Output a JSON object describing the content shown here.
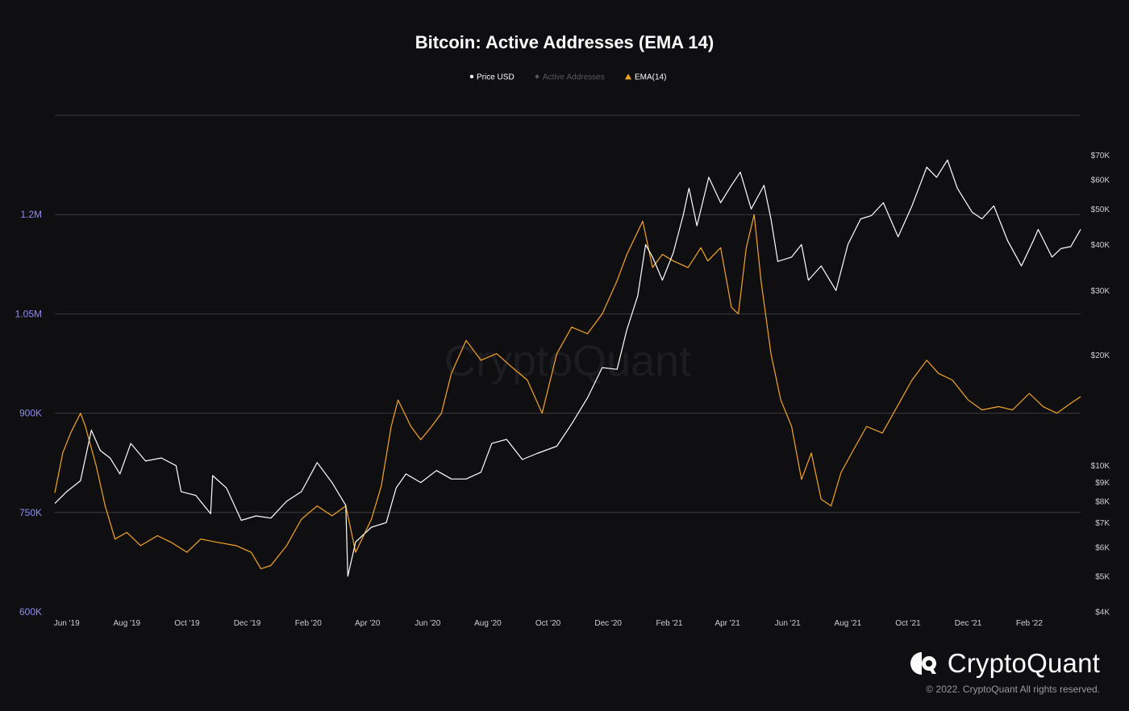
{
  "chart_data": {
    "type": "line",
    "title": "Bitcoin: Active Addresses (EMA 14)",
    "watermark": "CryptoQuant",
    "legend": [
      {
        "name": "Price USD",
        "marker": "circle",
        "color": "#ffffff",
        "active": true
      },
      {
        "name": "Active Addresses",
        "marker": "diamond",
        "color": "#5a5a5e",
        "active": false
      },
      {
        "name": "EMA(14)",
        "marker": "triangle",
        "color": "#f5a623",
        "active": true
      }
    ],
    "legend_placement": "top-center",
    "x_range": [
      "2019-05-20",
      "2022-03-25"
    ],
    "x_ticks": [
      "Jun '19",
      "Aug '19",
      "Oct '19",
      "Dec '19",
      "Feb '20",
      "Apr '20",
      "Jun '20",
      "Aug '20",
      "Oct '20",
      "Dec '20",
      "Feb '21",
      "Apr '21",
      "Jun '21",
      "Aug '21",
      "Oct '21",
      "Dec '21",
      "Feb '22"
    ],
    "y_left": {
      "ylim": [
        600000,
        1350000
      ],
      "ticks": [
        {
          "v": 600000,
          "label": "600K"
        },
        {
          "v": 750000,
          "label": "750K"
        },
        {
          "v": 900000,
          "label": "900K"
        },
        {
          "v": 1050000,
          "label": "1.05M"
        },
        {
          "v": 1200000,
          "label": "1.2M"
        }
      ],
      "color": "#8f8cf0",
      "grid": true
    },
    "y_right": {
      "scale": "log",
      "ylim": [
        4000,
        90000
      ],
      "ticks": [
        {
          "v": 4000,
          "label": "$4K"
        },
        {
          "v": 5000,
          "label": "$5K"
        },
        {
          "v": 6000,
          "label": "$6K"
        },
        {
          "v": 7000,
          "label": "$7K"
        },
        {
          "v": 8000,
          "label": "$8K"
        },
        {
          "v": 9000,
          "label": "$9K"
        },
        {
          "v": 10000,
          "label": "$10K"
        },
        {
          "v": 20000,
          "label": "$20K"
        },
        {
          "v": 30000,
          "label": "$30K"
        },
        {
          "v": 40000,
          "label": "$40K"
        },
        {
          "v": 50000,
          "label": "$50K"
        },
        {
          "v": 60000,
          "label": "$60K"
        },
        {
          "v": 70000,
          "label": "$70K"
        }
      ]
    },
    "series": [
      {
        "name": "Price USD",
        "axis": "right",
        "color": "#ffffff",
        "points": [
          [
            "2019-05-20",
            7900
          ],
          [
            "2019-06-01",
            8500
          ],
          [
            "2019-06-15",
            9100
          ],
          [
            "2019-06-26",
            12500
          ],
          [
            "2019-07-05",
            11000
          ],
          [
            "2019-07-15",
            10500
          ],
          [
            "2019-07-25",
            9500
          ],
          [
            "2019-08-05",
            11500
          ],
          [
            "2019-08-20",
            10300
          ],
          [
            "2019-09-05",
            10500
          ],
          [
            "2019-09-20",
            10000
          ],
          [
            "2019-09-25",
            8500
          ],
          [
            "2019-10-10",
            8300
          ],
          [
            "2019-10-25",
            7400
          ],
          [
            "2019-10-27",
            9400
          ],
          [
            "2019-11-10",
            8700
          ],
          [
            "2019-11-25",
            7100
          ],
          [
            "2019-12-10",
            7300
          ],
          [
            "2019-12-25",
            7200
          ],
          [
            "2020-01-10",
            8000
          ],
          [
            "2020-01-25",
            8500
          ],
          [
            "2020-02-10",
            10200
          ],
          [
            "2020-02-25",
            9000
          ],
          [
            "2020-03-10",
            7800
          ],
          [
            "2020-03-12",
            5000
          ],
          [
            "2020-03-20",
            6200
          ],
          [
            "2020-04-05",
            6800
          ],
          [
            "2020-04-20",
            7000
          ],
          [
            "2020-04-30",
            8700
          ],
          [
            "2020-05-10",
            9500
          ],
          [
            "2020-05-25",
            9000
          ],
          [
            "2020-06-10",
            9700
          ],
          [
            "2020-06-25",
            9200
          ],
          [
            "2020-07-10",
            9200
          ],
          [
            "2020-07-25",
            9600
          ],
          [
            "2020-08-05",
            11500
          ],
          [
            "2020-08-20",
            11800
          ],
          [
            "2020-09-05",
            10400
          ],
          [
            "2020-09-20",
            10800
          ],
          [
            "2020-10-10",
            11300
          ],
          [
            "2020-10-25",
            13000
          ],
          [
            "2020-11-10",
            15300
          ],
          [
            "2020-11-25",
            18500
          ],
          [
            "2020-12-10",
            18300
          ],
          [
            "2020-12-20",
            23500
          ],
          [
            "2020-12-31",
            29000
          ],
          [
            "2021-01-08",
            40000
          ],
          [
            "2021-01-15",
            37000
          ],
          [
            "2021-01-25",
            32000
          ],
          [
            "2021-02-05",
            38000
          ],
          [
            "2021-02-15",
            48000
          ],
          [
            "2021-02-21",
            57000
          ],
          [
            "2021-03-01",
            45000
          ],
          [
            "2021-03-13",
            61000
          ],
          [
            "2021-03-25",
            52000
          ],
          [
            "2021-04-05",
            58000
          ],
          [
            "2021-04-14",
            63000
          ],
          [
            "2021-04-25",
            50000
          ],
          [
            "2021-05-08",
            58000
          ],
          [
            "2021-05-15",
            47000
          ],
          [
            "2021-05-22",
            36000
          ],
          [
            "2021-06-05",
            37000
          ],
          [
            "2021-06-15",
            40000
          ],
          [
            "2021-06-22",
            32000
          ],
          [
            "2021-07-05",
            35000
          ],
          [
            "2021-07-20",
            30000
          ],
          [
            "2021-08-01",
            40000
          ],
          [
            "2021-08-14",
            47000
          ],
          [
            "2021-08-25",
            48000
          ],
          [
            "2021-09-06",
            52000
          ],
          [
            "2021-09-21",
            42000
          ],
          [
            "2021-10-05",
            51000
          ],
          [
            "2021-10-20",
            65000
          ],
          [
            "2021-10-30",
            61000
          ],
          [
            "2021-11-10",
            68000
          ],
          [
            "2021-11-20",
            57000
          ],
          [
            "2021-12-05",
            49000
          ],
          [
            "2021-12-15",
            47000
          ],
          [
            "2021-12-27",
            51000
          ],
          [
            "2022-01-10",
            41000
          ],
          [
            "2022-01-24",
            35000
          ],
          [
            "2022-02-05",
            41000
          ],
          [
            "2022-02-10",
            44000
          ],
          [
            "2022-02-24",
            37000
          ],
          [
            "2022-03-05",
            39000
          ],
          [
            "2022-03-15",
            39500
          ],
          [
            "2022-03-25",
            44000
          ]
        ]
      },
      {
        "name": "EMA(14)",
        "axis": "left",
        "color": "#f5a623",
        "points": [
          [
            "2019-05-20",
            780000
          ],
          [
            "2019-05-28",
            840000
          ],
          [
            "2019-06-05",
            870000
          ],
          [
            "2019-06-15",
            900000
          ],
          [
            "2019-06-20",
            880000
          ],
          [
            "2019-07-01",
            820000
          ],
          [
            "2019-07-10",
            760000
          ],
          [
            "2019-07-20",
            710000
          ],
          [
            "2019-08-01",
            720000
          ],
          [
            "2019-08-15",
            700000
          ],
          [
            "2019-09-01",
            715000
          ],
          [
            "2019-09-15",
            705000
          ],
          [
            "2019-10-01",
            690000
          ],
          [
            "2019-10-15",
            710000
          ],
          [
            "2019-11-01",
            705000
          ],
          [
            "2019-11-20",
            700000
          ],
          [
            "2019-12-05",
            690000
          ],
          [
            "2019-12-15",
            665000
          ],
          [
            "2019-12-25",
            670000
          ],
          [
            "2020-01-10",
            700000
          ],
          [
            "2020-01-25",
            740000
          ],
          [
            "2020-02-10",
            760000
          ],
          [
            "2020-02-25",
            745000
          ],
          [
            "2020-03-10",
            760000
          ],
          [
            "2020-03-20",
            690000
          ],
          [
            "2020-04-05",
            740000
          ],
          [
            "2020-04-15",
            790000
          ],
          [
            "2020-04-25",
            880000
          ],
          [
            "2020-05-02",
            920000
          ],
          [
            "2020-05-15",
            880000
          ],
          [
            "2020-05-25",
            860000
          ],
          [
            "2020-06-05",
            880000
          ],
          [
            "2020-06-15",
            900000
          ],
          [
            "2020-06-25",
            960000
          ],
          [
            "2020-07-10",
            1010000
          ],
          [
            "2020-07-25",
            980000
          ],
          [
            "2020-08-10",
            990000
          ],
          [
            "2020-08-25",
            970000
          ],
          [
            "2020-09-10",
            950000
          ],
          [
            "2020-09-25",
            900000
          ],
          [
            "2020-10-10",
            990000
          ],
          [
            "2020-10-25",
            1030000
          ],
          [
            "2020-11-10",
            1020000
          ],
          [
            "2020-11-25",
            1050000
          ],
          [
            "2020-12-10",
            1100000
          ],
          [
            "2020-12-20",
            1140000
          ],
          [
            "2021-01-05",
            1190000
          ],
          [
            "2021-01-15",
            1120000
          ],
          [
            "2021-01-25",
            1140000
          ],
          [
            "2021-02-05",
            1130000
          ],
          [
            "2021-02-20",
            1120000
          ],
          [
            "2021-03-05",
            1150000
          ],
          [
            "2021-03-12",
            1130000
          ],
          [
            "2021-03-25",
            1150000
          ],
          [
            "2021-04-05",
            1060000
          ],
          [
            "2021-04-12",
            1050000
          ],
          [
            "2021-04-20",
            1150000
          ],
          [
            "2021-04-28",
            1200000
          ],
          [
            "2021-05-05",
            1100000
          ],
          [
            "2021-05-15",
            990000
          ],
          [
            "2021-05-25",
            920000
          ],
          [
            "2021-06-05",
            880000
          ],
          [
            "2021-06-15",
            800000
          ],
          [
            "2021-06-25",
            840000
          ],
          [
            "2021-07-05",
            770000
          ],
          [
            "2021-07-15",
            760000
          ],
          [
            "2021-07-25",
            810000
          ],
          [
            "2021-08-05",
            840000
          ],
          [
            "2021-08-20",
            880000
          ],
          [
            "2021-09-05",
            870000
          ],
          [
            "2021-09-20",
            910000
          ],
          [
            "2021-10-05",
            950000
          ],
          [
            "2021-10-20",
            980000
          ],
          [
            "2021-11-01",
            960000
          ],
          [
            "2021-11-15",
            950000
          ],
          [
            "2021-12-01",
            920000
          ],
          [
            "2021-12-15",
            905000
          ],
          [
            "2022-01-01",
            910000
          ],
          [
            "2022-01-15",
            905000
          ],
          [
            "2022-02-01",
            930000
          ],
          [
            "2022-02-15",
            910000
          ],
          [
            "2022-03-01",
            900000
          ],
          [
            "2022-03-15",
            915000
          ],
          [
            "2022-03-25",
            925000
          ]
        ]
      }
    ]
  },
  "brand": {
    "name": "CryptoQuant",
    "copyright": "© 2022. CryptoQuant All rights reserved."
  }
}
